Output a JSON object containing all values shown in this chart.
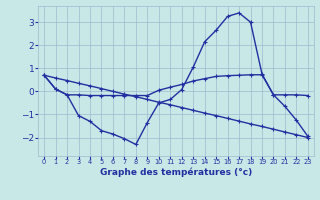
{
  "xlabel": "Graphe des températures (°c)",
  "x": [
    0,
    1,
    2,
    3,
    4,
    5,
    6,
    7,
    8,
    9,
    10,
    11,
    12,
    13,
    14,
    15,
    16,
    17,
    18,
    19,
    20,
    21,
    22,
    23
  ],
  "line_arc": [
    0.7,
    0.1,
    -0.15,
    -1.05,
    -1.3,
    -1.7,
    -1.85,
    -2.05,
    -2.3,
    -1.35,
    -0.5,
    -0.35,
    0.08,
    1.05,
    2.15,
    2.65,
    3.25,
    3.4,
    3.0,
    0.75,
    -0.15,
    -0.65,
    -1.25,
    -1.95
  ],
  "line_flat_up": [
    0.7,
    0.1,
    -0.15,
    -0.15,
    -0.18,
    -0.18,
    -0.18,
    -0.18,
    -0.18,
    -0.18,
    0.05,
    0.18,
    0.3,
    0.45,
    0.55,
    0.65,
    0.68,
    0.7,
    0.72,
    0.72,
    -0.15,
    -0.15,
    -0.15,
    -0.18
  ],
  "line_diag": [
    0.7,
    0.58,
    0.47,
    0.35,
    0.24,
    0.12,
    0.0,
    -0.12,
    -0.23,
    -0.35,
    -0.47,
    -0.58,
    -0.7,
    -0.82,
    -0.94,
    -1.05,
    -1.17,
    -1.29,
    -1.41,
    -1.52,
    -1.64,
    -1.76,
    -1.88,
    -2.0
  ],
  "ylim": [
    -2.8,
    3.7
  ],
  "yticks": [
    -2,
    -1,
    0,
    1,
    2,
    3
  ],
  "bg_color": "#c8e8e8",
  "grid_color": "#99bbcc",
  "line_color": "#2030a0",
  "lw": 1.0,
  "ms": 3.5
}
